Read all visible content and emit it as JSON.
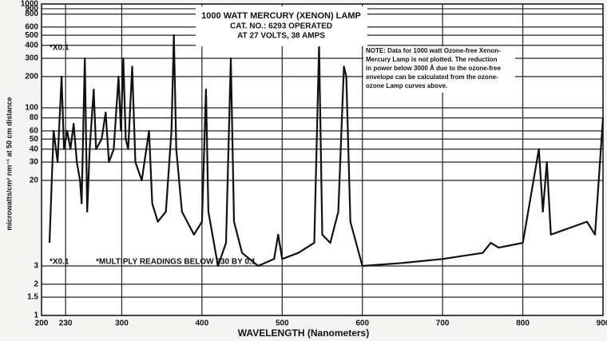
{
  "chart_data": {
    "type": "line",
    "title": "1000 WATT MERCURY (XENON) LAMP",
    "subtitle": [
      "CAT. NO.: 6293 OPERATED",
      "AT 27 VOLTS, 38 AMPS"
    ],
    "note": [
      "NOTE: Data for 1000 watt Ozone-free Xenon-",
      "Mercury Lamp is not plotted. The reduction",
      "in power below 3000 Å due to the ozone-free",
      "envelope can be calculated from the ozone-",
      "ozone Lamp curves above."
    ],
    "annotations": [
      "*X0.1",
      "*X0.1",
      "*MULTIPLY READINGS BELOW 230 BY 0.1"
    ],
    "x_label": "WAVELENGTH (Nanometers)",
    "y_label": "microwatts/cm² nm⁻¹ at 50 cm distance",
    "log_y": true,
    "grid": true,
    "color": "#111111",
    "x": [
      210,
      215,
      220,
      225,
      228,
      232,
      236,
      240,
      244,
      248,
      250,
      254,
      257,
      260,
      265,
      268,
      275,
      280,
      284,
      290,
      296,
      299,
      302,
      305,
      308,
      313,
      317,
      325,
      334,
      338,
      345,
      355,
      362,
      365,
      368,
      375,
      390,
      400,
      405,
      408,
      420,
      430,
      436,
      440,
      450,
      470,
      490,
      495,
      500,
      520,
      540,
      546,
      550,
      560,
      570,
      577,
      580,
      585,
      600,
      650,
      700,
      750,
      760,
      770,
      800,
      820,
      825,
      830,
      835,
      880,
      890,
      900
    ],
    "values": [
      5,
      60,
      30,
      200,
      40,
      60,
      40,
      70,
      30,
      20,
      12,
      300,
      10,
      40,
      150,
      40,
      50,
      90,
      30,
      40,
      200,
      60,
      300,
      50,
      40,
      250,
      30,
      20,
      60,
      12,
      8,
      10,
      60,
      500,
      40,
      10,
      6,
      8,
      150,
      10,
      3,
      5,
      300,
      8,
      4,
      3,
      3.5,
      6,
      3.5,
      4,
      5,
      400,
      6,
      5,
      10,
      250,
      200,
      8,
      3,
      3.2,
      3.5,
      4,
      5,
      4.5,
      5,
      40,
      10,
      30,
      6,
      8,
      6,
      80
    ],
    "xlim": [
      200,
      900
    ],
    "xticks": [
      200,
      230,
      300,
      400,
      500,
      600,
      700,
      800,
      900
    ],
    "ylim": [
      1,
      1000
    ],
    "yticks": [
      1000,
      900,
      800,
      600,
      500,
      400,
      300,
      200,
      100,
      80,
      60,
      50,
      40,
      30,
      20,
      3,
      2,
      1.5,
      1
    ]
  }
}
